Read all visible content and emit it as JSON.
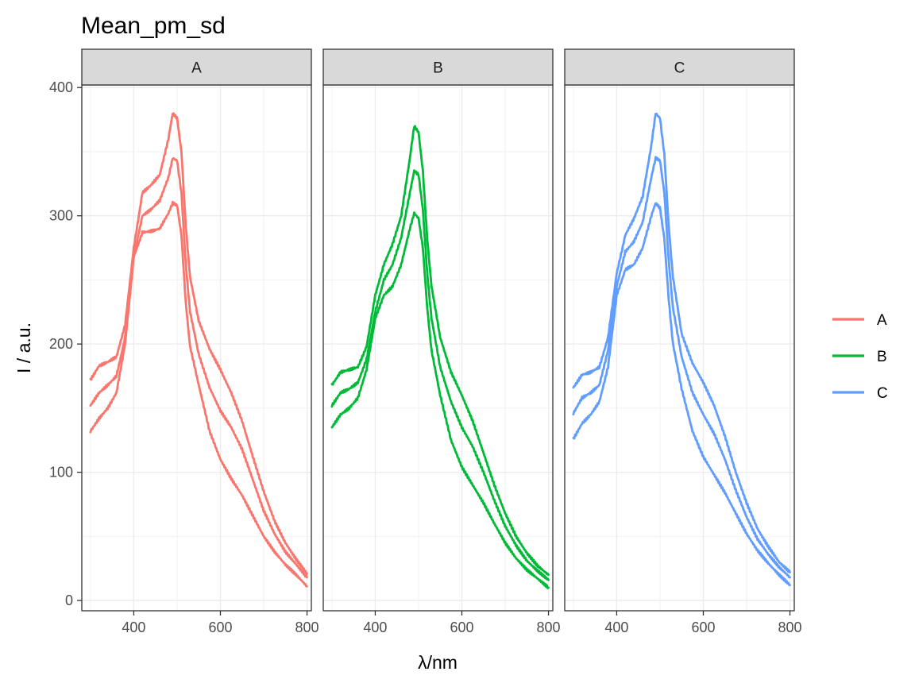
{
  "chart_data": {
    "type": "line",
    "title": "Mean_pm_sd",
    "xlabel": "λ/nm",
    "ylabel": "I / a.u.",
    "xlim": [
      280,
      810
    ],
    "ylim": [
      -8,
      402
    ],
    "xticks": [
      400,
      600,
      800
    ],
    "yticks": [
      0,
      100,
      200,
      300,
      400
    ],
    "grid": true,
    "legend_position": "right",
    "legend_entries": [
      {
        "label": "A",
        "color": "#F8766D"
      },
      {
        "label": "B",
        "color": "#00BA38"
      },
      {
        "label": "C",
        "color": "#619CFF"
      }
    ],
    "panels": [
      {
        "label": "A",
        "color": "#F8766D",
        "series": [
          {
            "role": "mean_plus_sd",
            "x": [
              300,
              320,
              340,
              360,
              380,
              400,
              420,
              440,
              460,
              480,
              490,
              500,
              510,
              520,
              530,
              550,
              575,
              600,
              625,
              650,
              675,
              700,
              725,
              750,
              775,
              800
            ],
            "y": [
              172,
              183,
              186,
              190,
              215,
              275,
              318,
              324,
              332,
              360,
              380,
              376,
              350,
              292,
              252,
              218,
              196,
              180,
              162,
              140,
              112,
              85,
              62,
              45,
              32,
              21
            ]
          },
          {
            "role": "mean",
            "x": [
              300,
              320,
              340,
              360,
              380,
              400,
              420,
              440,
              460,
              480,
              490,
              500,
              510,
              520,
              530,
              550,
              575,
              600,
              625,
              650,
              675,
              700,
              725,
              750,
              775,
              800
            ],
            "y": [
              152,
              162,
              168,
              175,
              205,
              268,
              300,
              305,
              312,
              330,
              345,
              343,
              318,
              262,
              225,
              192,
              166,
              148,
              135,
              118,
              94,
              70,
              52,
              38,
              28,
              18
            ]
          },
          {
            "role": "mean_minus_sd",
            "x": [
              300,
              320,
              340,
              360,
              380,
              400,
              420,
              440,
              460,
              480,
              490,
              500,
              510,
              520,
              530,
              550,
              575,
              600,
              625,
              650,
              675,
              700,
              725,
              750,
              775,
              800
            ],
            "y": [
              132,
              142,
              150,
              162,
              200,
              268,
              287,
              288,
              290,
              302,
              310,
              308,
              285,
              232,
              198,
              168,
              132,
              110,
              95,
              82,
              66,
              50,
              38,
              28,
              20,
              11
            ]
          }
        ]
      },
      {
        "label": "B",
        "color": "#00BA38",
        "series": [
          {
            "role": "mean_plus_sd",
            "x": [
              300,
              320,
              340,
              360,
              380,
              400,
              420,
              440,
              460,
              480,
              490,
              500,
              510,
              520,
              530,
              550,
              575,
              600,
              625,
              650,
              675,
              700,
              725,
              750,
              775,
              800
            ],
            "y": [
              168,
              178,
              180,
              182,
              198,
              238,
              262,
              278,
              300,
              345,
              370,
              365,
              335,
              282,
              245,
              205,
              178,
              160,
              140,
              115,
              90,
              68,
              50,
              37,
              27,
              20
            ]
          },
          {
            "role": "mean",
            "x": [
              300,
              320,
              340,
              360,
              380,
              400,
              420,
              440,
              460,
              480,
              490,
              500,
              510,
              520,
              530,
              550,
              575,
              600,
              625,
              650,
              675,
              700,
              725,
              750,
              775,
              800
            ],
            "y": [
              152,
              162,
              165,
              170,
              188,
              225,
              250,
              262,
              283,
              318,
              335,
              332,
              305,
              255,
              220,
              182,
              155,
              135,
              120,
              100,
              78,
              58,
              43,
              31,
              23,
              16
            ]
          },
          {
            "role": "mean_minus_sd",
            "x": [
              300,
              320,
              340,
              360,
              380,
              400,
              420,
              440,
              460,
              480,
              490,
              500,
              510,
              520,
              530,
              550,
              575,
              600,
              625,
              650,
              675,
              700,
              725,
              750,
              775,
              800
            ],
            "y": [
              135,
              145,
              150,
              158,
              180,
              220,
              238,
              245,
              262,
              290,
              302,
              298,
              275,
              228,
              195,
              160,
              125,
              104,
              90,
              76,
              60,
              45,
              33,
              24,
              17,
              10
            ]
          }
        ]
      },
      {
        "label": "C",
        "color": "#619CFF",
        "series": [
          {
            "role": "mean_plus_sd",
            "x": [
              300,
              320,
              340,
              360,
              380,
              400,
              420,
              440,
              460,
              480,
              490,
              500,
              510,
              520,
              530,
              550,
              575,
              600,
              625,
              650,
              675,
              700,
              725,
              750,
              775,
              800
            ],
            "y": [
              166,
              176,
              178,
              182,
              205,
              255,
              285,
              298,
              315,
              355,
              380,
              376,
              348,
              292,
              252,
              208,
              185,
              170,
              152,
              128,
              100,
              76,
              56,
              42,
              30,
              22
            ]
          },
          {
            "role": "mean",
            "x": [
              300,
              320,
              340,
              360,
              380,
              400,
              420,
              440,
              460,
              480,
              490,
              500,
              510,
              520,
              530,
              550,
              575,
              600,
              625,
              650,
              675,
              700,
              725,
              750,
              775,
              800
            ],
            "y": [
              146,
              158,
              162,
              168,
              195,
              245,
              272,
              280,
              295,
              330,
              345,
              343,
              318,
              265,
              228,
              190,
              162,
              145,
              130,
              110,
              86,
              65,
              48,
              36,
              26,
              18
            ]
          },
          {
            "role": "mean_minus_sd",
            "x": [
              300,
              320,
              340,
              360,
              380,
              400,
              420,
              440,
              460,
              480,
              490,
              500,
              510,
              520,
              530,
              550,
              575,
              600,
              625,
              650,
              675,
              700,
              725,
              750,
              775,
              800
            ],
            "y": [
              126,
              138,
              145,
              155,
              182,
              238,
              258,
              262,
              275,
              300,
              310,
              306,
              282,
              235,
              200,
              165,
              132,
              112,
              98,
              84,
              68,
              52,
              39,
              29,
              20,
              12
            ]
          }
        ]
      }
    ]
  }
}
